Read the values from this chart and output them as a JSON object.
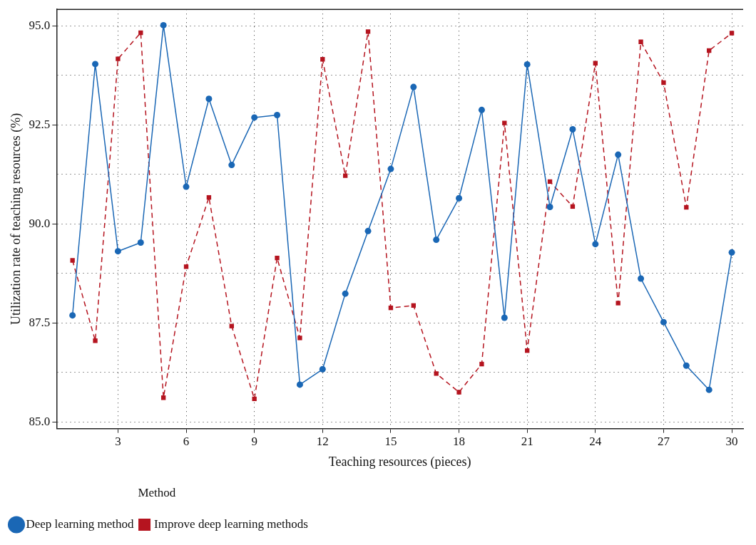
{
  "chart_data": {
    "type": "line",
    "xlabel": "Teaching resources (pieces)",
    "ylabel": "Utilization rate of teaching resources (%)",
    "legend_title": "Method",
    "x": [
      1,
      2,
      3,
      4,
      5,
      6,
      7,
      8,
      9,
      10,
      11,
      12,
      13,
      14,
      15,
      16,
      17,
      18,
      19,
      20,
      21,
      22,
      23,
      24,
      25,
      26,
      27,
      28,
      29,
      30
    ],
    "series": [
      {
        "name": "Deep learning method",
        "color": "#1a67b5",
        "marker": "circle",
        "line_style": "solid",
        "values": [
          87.69,
          94.04,
          89.31,
          89.53,
          95.02,
          90.94,
          93.16,
          91.49,
          92.69,
          92.75,
          85.94,
          86.33,
          88.24,
          89.82,
          91.39,
          93.46,
          89.6,
          90.65,
          92.88,
          87.63,
          94.03,
          90.43,
          92.39,
          89.49,
          91.75,
          88.62,
          87.52,
          86.42,
          85.81,
          89.28
        ]
      },
      {
        "name": "Improve deep learning methods",
        "color": "#b5141f",
        "marker": "square",
        "line_style": "dashed",
        "values": [
          89.08,
          87.05,
          94.17,
          94.83,
          85.61,
          88.92,
          90.67,
          87.42,
          85.58,
          89.14,
          87.12,
          94.16,
          91.22,
          94.86,
          87.88,
          87.94,
          86.22,
          85.75,
          86.46,
          92.55,
          86.8,
          91.07,
          90.44,
          94.06,
          88.0,
          94.6,
          93.57,
          90.42,
          94.38,
          94.82
        ]
      }
    ],
    "xlim": [
      0.3,
      30.5
    ],
    "xticks": [
      3,
      6,
      9,
      12,
      15,
      18,
      21,
      24,
      27,
      30
    ],
    "ylim": [
      84.83,
      95.42
    ],
    "yticks": [
      {
        "value": 85,
        "label": "85.0"
      },
      {
        "value": 86.25,
        "label": null
      },
      {
        "value": 87.5,
        "label": "87.5"
      },
      {
        "value": 88.75,
        "label": null
      },
      {
        "value": 90,
        "label": "90.0"
      },
      {
        "value": 91.25,
        "label": null
      },
      {
        "value": 92.5,
        "label": "92.5"
      },
      {
        "value": 93.75,
        "label": null
      },
      {
        "value": 95,
        "label": "95.0"
      }
    ],
    "grid": true,
    "legend": "bottom"
  }
}
